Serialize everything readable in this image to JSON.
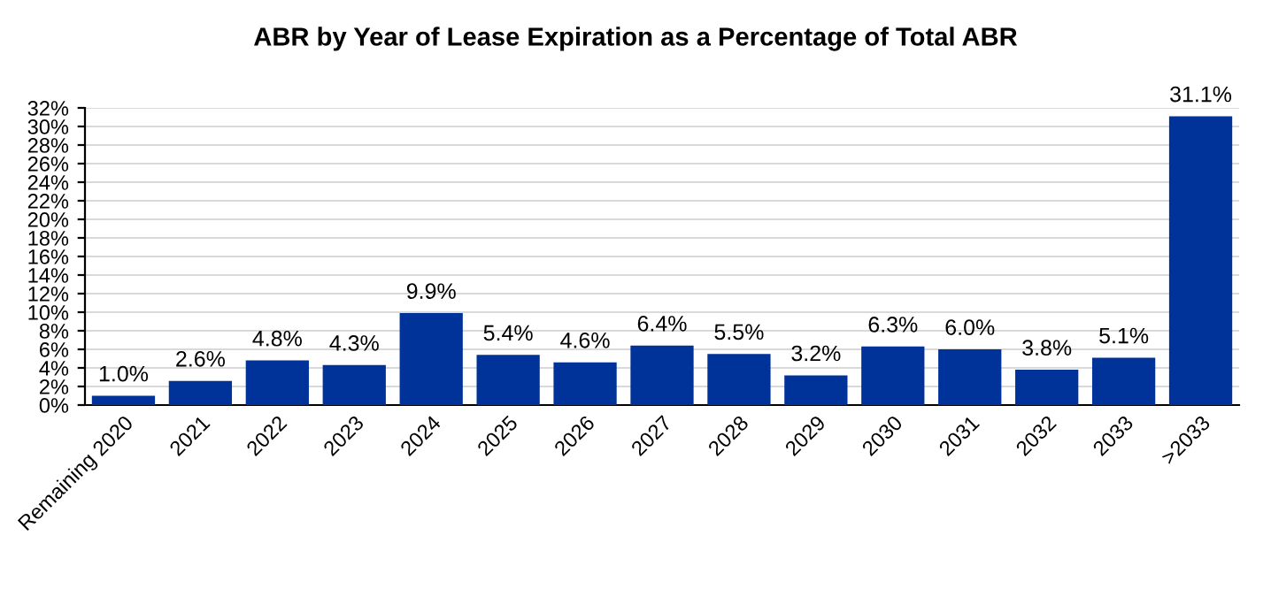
{
  "chart_data": {
    "type": "bar",
    "title": "ABR by Year of Lease Expiration as a Percentage of Total ABR",
    "categories": [
      "Remaining 2020",
      "2021",
      "2022",
      "2023",
      "2024",
      "2025",
      "2026",
      "2027",
      "2028",
      "2029",
      "2030",
      "2031",
      "2032",
      "2033",
      ">2033"
    ],
    "values": [
      1.0,
      2.6,
      4.8,
      4.3,
      9.9,
      5.4,
      4.6,
      6.4,
      5.5,
      3.2,
      6.3,
      6.0,
      3.8,
      5.1,
      31.1
    ],
    "value_labels": [
      "1.0%",
      "2.6%",
      "4.8%",
      "4.3%",
      "9.9%",
      "5.4%",
      "4.6%",
      "6.4%",
      "5.5%",
      "3.2%",
      "6.3%",
      "6.0%",
      "3.8%",
      "5.1%",
      "31.1%"
    ],
    "color": "#003399",
    "ylim": [
      0,
      32
    ],
    "yticks": [
      {
        "value": 0,
        "label": "0%"
      },
      {
        "value": 2,
        "label": "2%"
      },
      {
        "value": 4,
        "label": "4%"
      },
      {
        "value": 6,
        "label": "6%"
      },
      {
        "value": 8,
        "label": "8%"
      },
      {
        "value": 10,
        "label": "10%"
      },
      {
        "value": 12,
        "label": "12%"
      },
      {
        "value": 14,
        "label": "14%"
      },
      {
        "value": 16,
        "label": "16%"
      },
      {
        "value": 18,
        "label": "18%"
      },
      {
        "value": 20,
        "label": "20%"
      },
      {
        "value": 22,
        "label": "22%"
      },
      {
        "value": 24,
        "label": "24%"
      },
      {
        "value": 26,
        "label": "26%"
      },
      {
        "value": 28,
        "label": "28%"
      },
      {
        "value": 30,
        "label": "30%"
      },
      {
        "value": 32,
        "label": "32%"
      }
    ],
    "grid": "y",
    "legend": false
  }
}
